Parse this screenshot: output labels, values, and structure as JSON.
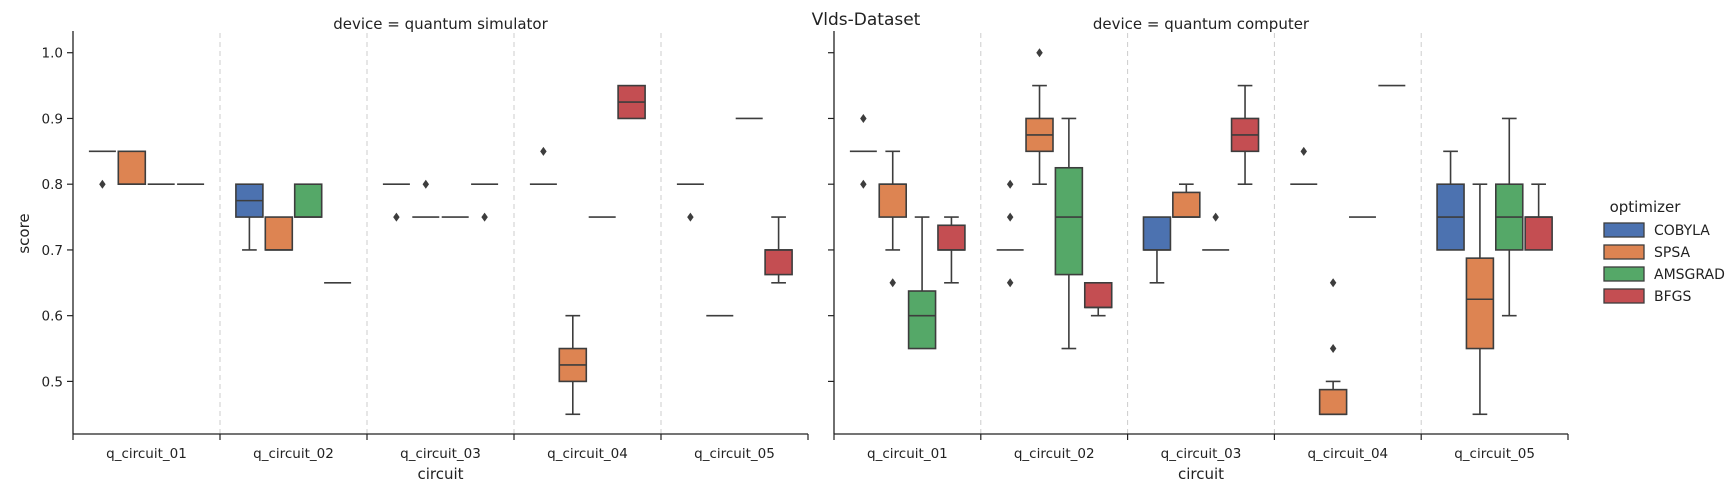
{
  "chart_data": {
    "type": "box",
    "title": "Vlds-Dataset",
    "xlabel": "circuit",
    "ylabel": "score",
    "ylim": [
      0.42,
      1.03
    ],
    "y_ticks": [
      "0.5",
      "0.6",
      "0.7",
      "0.8",
      "0.9",
      "1.0"
    ],
    "categories": [
      "q_circuit_01",
      "q_circuit_02",
      "q_circuit_03",
      "q_circuit_04",
      "q_circuit_05"
    ],
    "legend": {
      "title": "optimizer",
      "position": "right",
      "entries": [
        {
          "name": "COBYLA",
          "color": "#4c72b0"
        },
        {
          "name": "SPSA",
          "color": "#dd8452"
        },
        {
          "name": "AMSGRAD",
          "color": "#55a868"
        },
        {
          "name": "BFGS",
          "color": "#c44e52"
        }
      ]
    },
    "grid": "vertical dashed separators between circuits",
    "panels": [
      {
        "title": "device = quantum simulator",
        "boxes": [
          {
            "circuit": "q_circuit_01",
            "optimizer": "COBYLA",
            "q1": 0.85,
            "median": 0.85,
            "q3": 0.85,
            "whislo": 0.85,
            "whishi": 0.85,
            "fliers": [
              0.8
            ]
          },
          {
            "circuit": "q_circuit_01",
            "optimizer": "SPSA",
            "q1": 0.8,
            "median": 0.8,
            "q3": 0.85,
            "whislo": 0.8,
            "whishi": 0.85,
            "fliers": []
          },
          {
            "circuit": "q_circuit_01",
            "optimizer": "AMSGRAD",
            "q1": 0.8,
            "median": 0.8,
            "q3": 0.8,
            "whislo": 0.8,
            "whishi": 0.8,
            "fliers": []
          },
          {
            "circuit": "q_circuit_01",
            "optimizer": "BFGS",
            "q1": 0.8,
            "median": 0.8,
            "q3": 0.8,
            "whislo": 0.8,
            "whishi": 0.8,
            "fliers": []
          },
          {
            "circuit": "q_circuit_02",
            "optimizer": "COBYLA",
            "q1": 0.75,
            "median": 0.775,
            "q3": 0.8,
            "whislo": 0.7,
            "whishi": 0.8,
            "fliers": []
          },
          {
            "circuit": "q_circuit_02",
            "optimizer": "SPSA",
            "q1": 0.7,
            "median": 0.7,
            "q3": 0.75,
            "whislo": 0.7,
            "whishi": 0.75,
            "fliers": []
          },
          {
            "circuit": "q_circuit_02",
            "optimizer": "AMSGRAD",
            "q1": 0.75,
            "median": 0.75,
            "q3": 0.8,
            "whislo": 0.75,
            "whishi": 0.8,
            "fliers": []
          },
          {
            "circuit": "q_circuit_02",
            "optimizer": "BFGS",
            "q1": 0.65,
            "median": 0.65,
            "q3": 0.65,
            "whislo": 0.65,
            "whishi": 0.65,
            "fliers": []
          },
          {
            "circuit": "q_circuit_03",
            "optimizer": "COBYLA",
            "q1": 0.8,
            "median": 0.8,
            "q3": 0.8,
            "whislo": 0.8,
            "whishi": 0.8,
            "fliers": [
              0.75
            ]
          },
          {
            "circuit": "q_circuit_03",
            "optimizer": "SPSA",
            "q1": 0.75,
            "median": 0.75,
            "q3": 0.75,
            "whislo": 0.75,
            "whishi": 0.75,
            "fliers": [
              0.8
            ]
          },
          {
            "circuit": "q_circuit_03",
            "optimizer": "AMSGRAD",
            "q1": 0.75,
            "median": 0.75,
            "q3": 0.75,
            "whislo": 0.75,
            "whishi": 0.75,
            "fliers": []
          },
          {
            "circuit": "q_circuit_03",
            "optimizer": "BFGS",
            "q1": 0.8,
            "median": 0.8,
            "q3": 0.8,
            "whislo": 0.8,
            "whishi": 0.8,
            "fliers": [
              0.75
            ]
          },
          {
            "circuit": "q_circuit_04",
            "optimizer": "COBYLA",
            "q1": 0.8,
            "median": 0.8,
            "q3": 0.8,
            "whislo": 0.8,
            "whishi": 0.8,
            "fliers": [
              0.85
            ]
          },
          {
            "circuit": "q_circuit_04",
            "optimizer": "SPSA",
            "q1": 0.5,
            "median": 0.525,
            "q3": 0.55,
            "whislo": 0.45,
            "whishi": 0.6,
            "fliers": []
          },
          {
            "circuit": "q_circuit_04",
            "optimizer": "AMSGRAD",
            "q1": 0.75,
            "median": 0.75,
            "q3": 0.75,
            "whislo": 0.75,
            "whishi": 0.75,
            "fliers": []
          },
          {
            "circuit": "q_circuit_04",
            "optimizer": "BFGS",
            "q1": 0.9,
            "median": 0.925,
            "q3": 0.95,
            "whislo": 0.9,
            "whishi": 0.95,
            "fliers": []
          },
          {
            "circuit": "q_circuit_05",
            "optimizer": "COBYLA",
            "q1": 0.8,
            "median": 0.8,
            "q3": 0.8,
            "whislo": 0.8,
            "whishi": 0.8,
            "fliers": [
              0.75
            ]
          },
          {
            "circuit": "q_circuit_05",
            "optimizer": "SPSA",
            "q1": 0.6,
            "median": 0.6,
            "q3": 0.6,
            "whislo": 0.6,
            "whishi": 0.6,
            "fliers": []
          },
          {
            "circuit": "q_circuit_05",
            "optimizer": "AMSGRAD",
            "q1": 0.9,
            "median": 0.9,
            "q3": 0.9,
            "whislo": 0.9,
            "whishi": 0.9,
            "fliers": []
          },
          {
            "circuit": "q_circuit_05",
            "optimizer": "BFGS",
            "q1": 0.6625,
            "median": 0.7,
            "q3": 0.7,
            "whislo": 0.65,
            "whishi": 0.75,
            "fliers": []
          }
        ]
      },
      {
        "title": "device = quantum computer",
        "boxes": [
          {
            "circuit": "q_circuit_01",
            "optimizer": "COBYLA",
            "q1": 0.85,
            "median": 0.85,
            "q3": 0.85,
            "whislo": 0.85,
            "whishi": 0.85,
            "fliers": [
              0.9,
              0.8
            ]
          },
          {
            "circuit": "q_circuit_01",
            "optimizer": "SPSA",
            "q1": 0.75,
            "median": 0.8,
            "q3": 0.8,
            "whislo": 0.7,
            "whishi": 0.85,
            "fliers": [
              0.65
            ]
          },
          {
            "circuit": "q_circuit_01",
            "optimizer": "AMSGRAD",
            "q1": 0.55,
            "median": 0.6,
            "q3": 0.6375,
            "whislo": 0.55,
            "whishi": 0.75,
            "fliers": []
          },
          {
            "circuit": "q_circuit_01",
            "optimizer": "BFGS",
            "q1": 0.7,
            "median": 0.7,
            "q3": 0.7375,
            "whislo": 0.65,
            "whishi": 0.75,
            "fliers": []
          },
          {
            "circuit": "q_circuit_02",
            "optimizer": "COBYLA",
            "q1": 0.7,
            "median": 0.7,
            "q3": 0.7,
            "whislo": 0.7,
            "whishi": 0.7,
            "fliers": [
              0.8,
              0.75,
              0.65
            ]
          },
          {
            "circuit": "q_circuit_02",
            "optimizer": "SPSA",
            "q1": 0.85,
            "median": 0.875,
            "q3": 0.9,
            "whislo": 0.8,
            "whishi": 0.95,
            "fliers": [
              1.0
            ]
          },
          {
            "circuit": "q_circuit_02",
            "optimizer": "AMSGRAD",
            "q1": 0.6625,
            "median": 0.75,
            "q3": 0.825,
            "whislo": 0.55,
            "whishi": 0.9,
            "fliers": []
          },
          {
            "circuit": "q_circuit_02",
            "optimizer": "BFGS",
            "q1": 0.6125,
            "median": 0.6125,
            "q3": 0.65,
            "whislo": 0.6,
            "whishi": 0.65,
            "fliers": []
          },
          {
            "circuit": "q_circuit_03",
            "optimizer": "COBYLA",
            "q1": 0.7,
            "median": 0.7,
            "q3": 0.75,
            "whislo": 0.65,
            "whishi": 0.75,
            "fliers": []
          },
          {
            "circuit": "q_circuit_03",
            "optimizer": "SPSA",
            "q1": 0.75,
            "median": 0.75,
            "q3": 0.7875,
            "whislo": 0.75,
            "whishi": 0.8,
            "fliers": []
          },
          {
            "circuit": "q_circuit_03",
            "optimizer": "AMSGRAD",
            "q1": 0.7,
            "median": 0.7,
            "q3": 0.7,
            "whislo": 0.7,
            "whishi": 0.7,
            "fliers": [
              0.75
            ]
          },
          {
            "circuit": "q_circuit_03",
            "optimizer": "BFGS",
            "q1": 0.85,
            "median": 0.875,
            "q3": 0.9,
            "whislo": 0.8,
            "whishi": 0.95,
            "fliers": []
          },
          {
            "circuit": "q_circuit_04",
            "optimizer": "COBYLA",
            "q1": 0.8,
            "median": 0.8,
            "q3": 0.8,
            "whislo": 0.8,
            "whishi": 0.8,
            "fliers": [
              0.85
            ]
          },
          {
            "circuit": "q_circuit_04",
            "optimizer": "SPSA",
            "q1": 0.45,
            "median": 0.45,
            "q3": 0.4875,
            "whislo": 0.45,
            "whishi": 0.5,
            "fliers": [
              0.65,
              0.55
            ]
          },
          {
            "circuit": "q_circuit_04",
            "optimizer": "AMSGRAD",
            "q1": 0.75,
            "median": 0.75,
            "q3": 0.75,
            "whislo": 0.75,
            "whishi": 0.75,
            "fliers": []
          },
          {
            "circuit": "q_circuit_04",
            "optimizer": "BFGS",
            "q1": 0.95,
            "median": 0.95,
            "q3": 0.95,
            "whislo": 0.95,
            "whishi": 0.95,
            "fliers": []
          },
          {
            "circuit": "q_circuit_05",
            "optimizer": "COBYLA",
            "q1": 0.7,
            "median": 0.75,
            "q3": 0.8,
            "whislo": 0.7,
            "whishi": 0.85,
            "fliers": []
          },
          {
            "circuit": "q_circuit_05",
            "optimizer": "SPSA",
            "q1": 0.55,
            "median": 0.625,
            "q3": 0.6875,
            "whislo": 0.45,
            "whishi": 0.8,
            "fliers": []
          },
          {
            "circuit": "q_circuit_05",
            "optimizer": "AMSGRAD",
            "q1": 0.7,
            "median": 0.75,
            "q3": 0.8,
            "whislo": 0.6,
            "whishi": 0.9,
            "fliers": []
          },
          {
            "circuit": "q_circuit_05",
            "optimizer": "BFGS",
            "q1": 0.7,
            "median": 0.75,
            "q3": 0.75,
            "whislo": 0.7,
            "whishi": 0.8,
            "fliers": []
          }
        ]
      }
    ]
  }
}
